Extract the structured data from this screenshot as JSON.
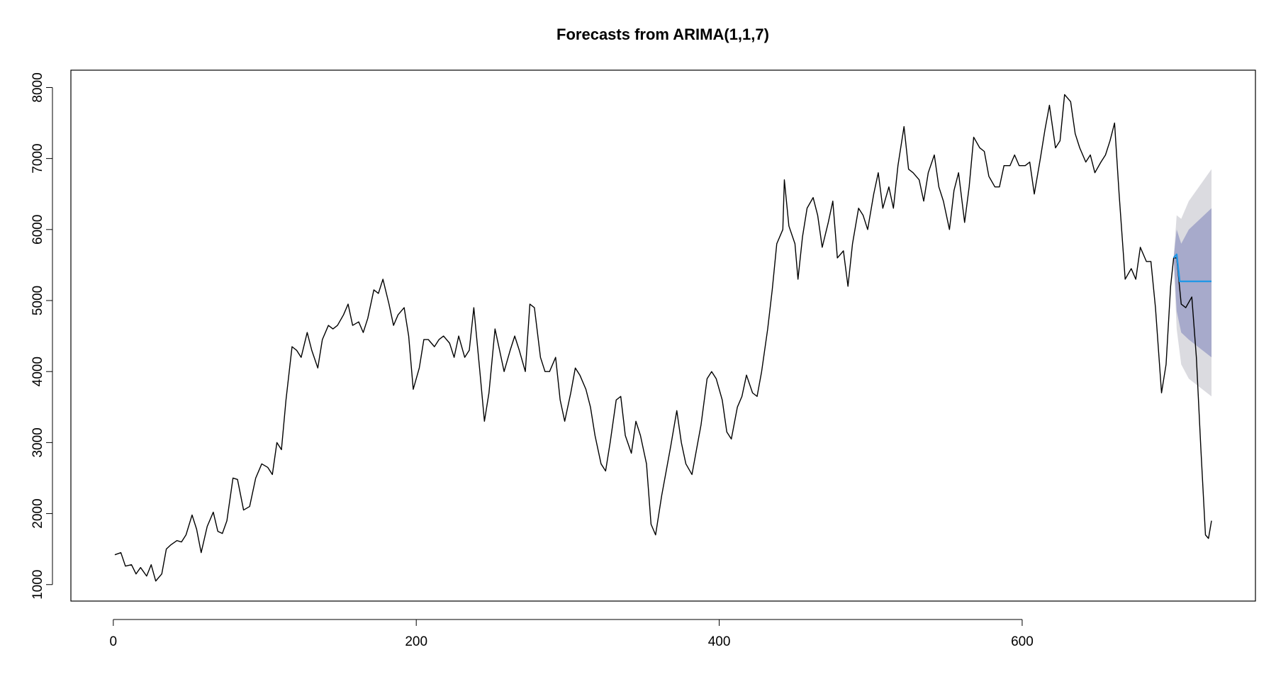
{
  "chart_data": {
    "type": "line",
    "title": "Forecasts from ARIMA(1,1,7)",
    "xlim": [
      -28,
      754
    ],
    "ylim": [
      768,
      8244
    ],
    "xticks": [
      0,
      200,
      400,
      600
    ],
    "yticks": [
      1000,
      2000,
      3000,
      4000,
      5000,
      6000,
      7000,
      8000
    ],
    "bands": [
      {
        "color": "#dbdbe0",
        "x": [
          700,
          702,
          705,
          710,
          725
        ],
        "lower": [
          5600,
          4600,
          4100,
          3900,
          3650
        ],
        "upper": [
          5600,
          6200,
          6150,
          6400,
          6850
        ]
      },
      {
        "color": "#a7aacb",
        "x": [
          700,
          702,
          705,
          710,
          725
        ],
        "lower": [
          5600,
          4850,
          4550,
          4450,
          4200
        ],
        "upper": [
          5600,
          6000,
          5800,
          6000,
          6300
        ]
      }
    ],
    "series": [
      {
        "color": "#000000",
        "x": [
          1,
          5,
          8,
          12,
          15,
          18,
          22,
          25,
          28,
          32,
          35,
          38,
          42,
          45,
          48,
          52,
          55,
          58,
          62,
          66,
          69,
          72,
          75,
          79,
          82,
          86,
          90,
          94,
          98,
          102,
          105,
          108,
          111,
          114,
          118,
          121,
          124,
          128,
          131,
          135,
          138,
          142,
          145,
          148,
          152,
          155,
          158,
          162,
          165,
          168,
          172,
          175,
          178,
          182,
          185,
          188,
          192,
          195,
          198,
          202,
          205,
          208,
          212,
          215,
          218,
          222,
          225,
          228,
          232,
          235,
          238,
          242,
          245,
          248,
          252,
          255,
          258,
          262,
          265,
          268,
          272,
          275,
          278,
          282,
          285,
          288,
          292,
          295,
          298,
          302,
          305,
          308,
          312,
          315,
          318,
          322,
          325,
          328,
          332,
          335,
          338,
          342,
          345,
          348,
          352,
          355,
          358,
          362,
          365,
          368,
          372,
          375,
          378,
          382,
          385,
          388,
          392,
          395,
          398,
          402,
          405,
          408,
          412,
          415,
          418,
          422,
          425,
          428,
          432,
          435,
          438,
          442,
          443,
          446,
          450,
          452,
          455,
          458,
          462,
          465,
          468,
          472,
          475,
          478,
          482,
          485,
          488,
          492,
          495,
          498,
          502,
          505,
          508,
          512,
          515,
          518,
          522,
          525,
          528,
          532,
          535,
          538,
          542,
          545,
          548,
          552,
          555,
          558,
          562,
          565,
          568,
          572,
          575,
          578,
          582,
          585,
          588,
          592,
          595,
          598,
          602,
          605,
          608,
          612,
          615,
          618,
          622,
          625,
          628,
          632,
          635,
          638,
          642,
          645,
          648,
          652,
          655,
          658,
          661,
          664,
          668,
          672,
          675,
          678,
          682,
          685,
          688,
          692,
          695,
          698,
          700,
          702,
          705,
          708,
          712,
          715,
          718,
          721,
          723,
          725
        ],
        "values": [
          1420,
          1450,
          1260,
          1280,
          1150,
          1240,
          1120,
          1280,
          1050,
          1150,
          1500,
          1560,
          1620,
          1600,
          1700,
          1980,
          1780,
          1450,
          1820,
          2020,
          1750,
          1720,
          1900,
          2500,
          2480,
          2050,
          2100,
          2500,
          2700,
          2650,
          2550,
          3000,
          2900,
          3600,
          4350,
          4300,
          4200,
          4550,
          4300,
          4050,
          4450,
          4650,
          4600,
          4650,
          4800,
          4950,
          4650,
          4700,
          4550,
          4750,
          5150,
          5100,
          5300,
          4950,
          4650,
          4800,
          4900,
          4500,
          3750,
          4050,
          4450,
          4450,
          4350,
          4450,
          4500,
          4400,
          4200,
          4500,
          4200,
          4300,
          4900,
          4000,
          3300,
          3700,
          4600,
          4300,
          4000,
          4300,
          4500,
          4300,
          4000,
          4950,
          4900,
          4200,
          4000,
          4000,
          4200,
          3600,
          3300,
          3700,
          4050,
          3950,
          3750,
          3500,
          3100,
          2700,
          2600,
          3000,
          3600,
          3650,
          3100,
          2850,
          3300,
          3100,
          2700,
          1850,
          1700,
          2250,
          2600,
          2950,
          3450,
          3000,
          2700,
          2550,
          2900,
          3250,
          3900,
          4000,
          3900,
          3600,
          3150,
          3050,
          3500,
          3650,
          3950,
          3700,
          3650,
          4000,
          4600,
          5150,
          5800,
          6000,
          6700,
          6050,
          5800,
          5300,
          5900,
          6300,
          6450,
          6200,
          5750,
          6100,
          6400,
          5600,
          5700,
          5200,
          5800,
          6300,
          6200,
          6000,
          6500,
          6800,
          6300,
          6600,
          6300,
          6900,
          7450,
          6850,
          6800,
          6700,
          6400,
          6800,
          7050,
          6600,
          6400,
          6000,
          6550,
          6800,
          6100,
          6600,
          7300,
          7150,
          7100,
          6750,
          6600,
          6600,
          6900,
          6900,
          7050,
          6900,
          6900,
          6950,
          6500,
          7000,
          7400,
          7750,
          7150,
          7250,
          7900,
          7800,
          7350,
          7150,
          6950,
          7050,
          6800,
          6950,
          7050,
          7250,
          7500,
          6500,
          5300,
          5450,
          5300,
          5750,
          5550,
          5550,
          4900,
          3700,
          4100,
          5200,
          5600,
          5600,
          4950,
          4900,
          5050,
          4200,
          2900,
          1700,
          1650,
          1900
        ]
      },
      {
        "color": "#2297e6",
        "x": [
          700,
          702,
          704,
          725
        ],
        "values": [
          5600,
          5650,
          5270,
          5270
        ]
      }
    ]
  }
}
